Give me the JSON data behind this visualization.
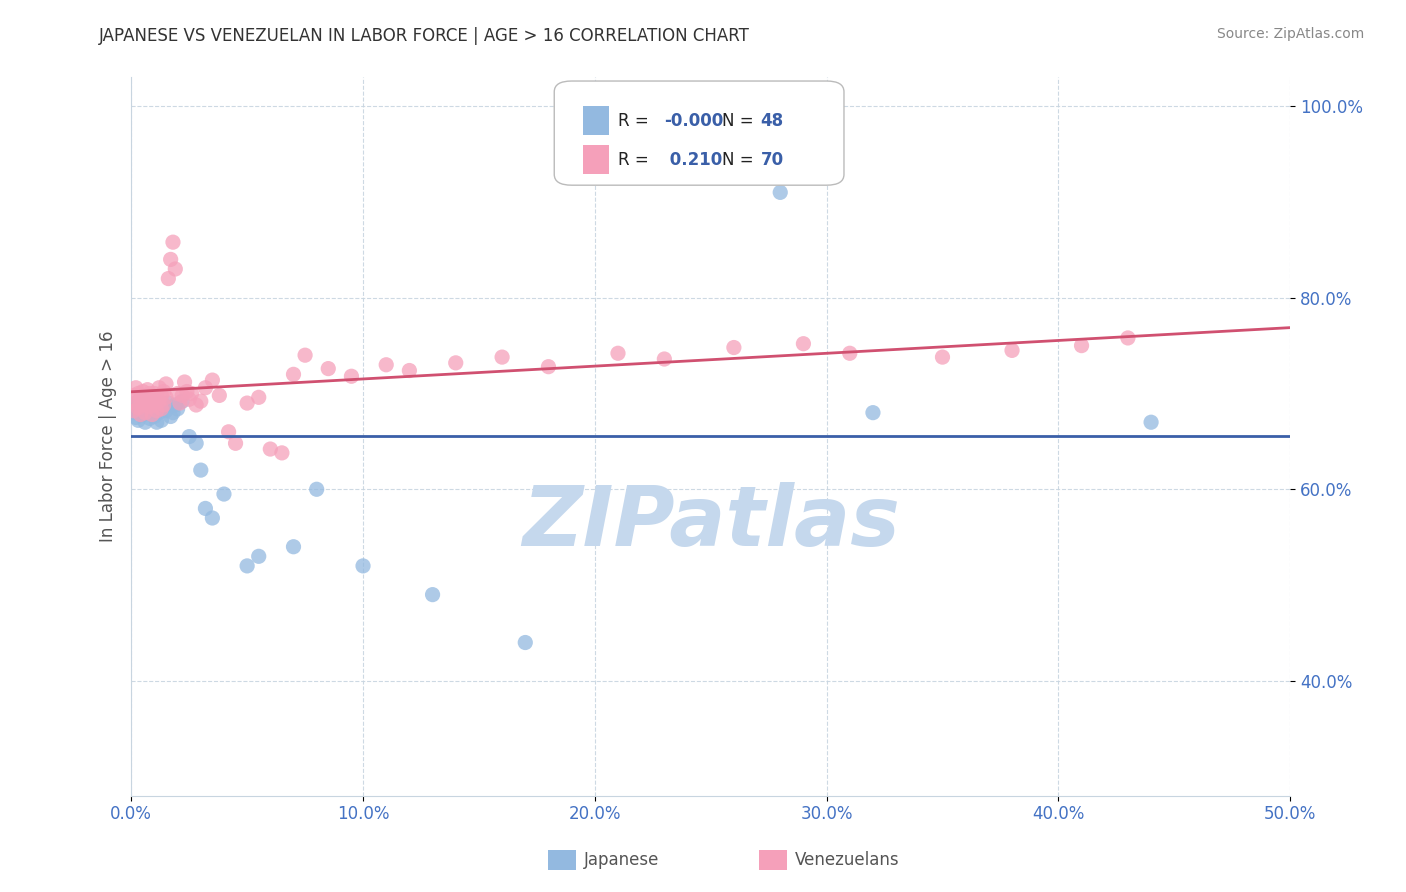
{
  "title": "JAPANESE VS VENEZUELAN IN LABOR FORCE | AGE > 16 CORRELATION CHART",
  "source": "Source: ZipAtlas.com",
  "ylabel": "In Labor Force | Age > 16",
  "xlim": [
    0.0,
    0.5
  ],
  "ylim": [
    0.28,
    1.03
  ],
  "xticks": [
    0.0,
    0.1,
    0.2,
    0.3,
    0.4,
    0.5
  ],
  "xticklabels": [
    "0.0%",
    "10.0%",
    "20.0%",
    "30.0%",
    "40.0%",
    "50.0%"
  ],
  "yticks": [
    0.4,
    0.6,
    0.8,
    1.0
  ],
  "yticklabels": [
    "40.0%",
    "60.0%",
    "80.0%",
    "100.0%"
  ],
  "watermark": "ZIPatlas",
  "watermark_color": "#c5d8ed",
  "japanese_color": "#93b9e0",
  "venezuelan_color": "#f5a0ba",
  "japanese_line_color": "#3a5fa8",
  "venezuelan_line_color": "#d05070",
  "grid_color": "#c8d5e0",
  "background_color": "#ffffff",
  "japanese_points": [
    [
      0.001,
      0.685
    ],
    [
      0.001,
      0.68
    ],
    [
      0.002,
      0.69
    ],
    [
      0.002,
      0.675
    ],
    [
      0.003,
      0.688
    ],
    [
      0.003,
      0.672
    ],
    [
      0.004,
      0.682
    ],
    [
      0.004,
      0.695
    ],
    [
      0.005,
      0.678
    ],
    [
      0.005,
      0.692
    ],
    [
      0.006,
      0.685
    ],
    [
      0.006,
      0.67
    ],
    [
      0.007,
      0.69
    ],
    [
      0.007,
      0.68
    ],
    [
      0.008,
      0.686
    ],
    [
      0.008,
      0.674
    ],
    [
      0.009,
      0.68
    ],
    [
      0.009,
      0.688
    ],
    [
      0.01,
      0.676
    ],
    [
      0.01,
      0.692
    ],
    [
      0.011,
      0.684
    ],
    [
      0.011,
      0.67
    ],
    [
      0.012,
      0.69
    ],
    [
      0.012,
      0.68
    ],
    [
      0.013,
      0.686
    ],
    [
      0.013,
      0.672
    ],
    [
      0.014,
      0.688
    ],
    [
      0.015,
      0.682
    ],
    [
      0.016,
      0.69
    ],
    [
      0.017,
      0.676
    ],
    [
      0.018,
      0.68
    ],
    [
      0.019,
      0.688
    ],
    [
      0.02,
      0.684
    ],
    [
      0.022,
      0.692
    ],
    [
      0.025,
      0.655
    ],
    [
      0.028,
      0.648
    ],
    [
      0.03,
      0.62
    ],
    [
      0.032,
      0.58
    ],
    [
      0.035,
      0.57
    ],
    [
      0.04,
      0.595
    ],
    [
      0.05,
      0.52
    ],
    [
      0.055,
      0.53
    ],
    [
      0.07,
      0.54
    ],
    [
      0.08,
      0.6
    ],
    [
      0.1,
      0.52
    ],
    [
      0.13,
      0.49
    ],
    [
      0.17,
      0.44
    ],
    [
      0.28,
      0.91
    ],
    [
      0.32,
      0.68
    ],
    [
      0.44,
      0.67
    ]
  ],
  "venezuelan_points": [
    [
      0.001,
      0.698
    ],
    [
      0.001,
      0.682
    ],
    [
      0.002,
      0.706
    ],
    [
      0.002,
      0.69
    ],
    [
      0.003,
      0.7
    ],
    [
      0.003,
      0.685
    ],
    [
      0.004,
      0.694
    ],
    [
      0.004,
      0.678
    ],
    [
      0.005,
      0.702
    ],
    [
      0.005,
      0.688
    ],
    [
      0.006,
      0.696
    ],
    [
      0.006,
      0.68
    ],
    [
      0.007,
      0.704
    ],
    [
      0.007,
      0.69
    ],
    [
      0.008,
      0.7
    ],
    [
      0.008,
      0.686
    ],
    [
      0.009,
      0.694
    ],
    [
      0.009,
      0.678
    ],
    [
      0.01,
      0.7
    ],
    [
      0.01,
      0.688
    ],
    [
      0.011,
      0.696
    ],
    [
      0.011,
      0.682
    ],
    [
      0.012,
      0.706
    ],
    [
      0.012,
      0.692
    ],
    [
      0.013,
      0.698
    ],
    [
      0.013,
      0.684
    ],
    [
      0.014,
      0.702
    ],
    [
      0.014,
      0.688
    ],
    [
      0.015,
      0.696
    ],
    [
      0.015,
      0.71
    ],
    [
      0.016,
      0.82
    ],
    [
      0.017,
      0.84
    ],
    [
      0.018,
      0.858
    ],
    [
      0.019,
      0.83
    ],
    [
      0.02,
      0.7
    ],
    [
      0.021,
      0.69
    ],
    [
      0.022,
      0.698
    ],
    [
      0.023,
      0.712
    ],
    [
      0.024,
      0.702
    ],
    [
      0.025,
      0.694
    ],
    [
      0.026,
      0.7
    ],
    [
      0.028,
      0.688
    ],
    [
      0.03,
      0.692
    ],
    [
      0.032,
      0.706
    ],
    [
      0.035,
      0.714
    ],
    [
      0.038,
      0.698
    ],
    [
      0.042,
      0.66
    ],
    [
      0.045,
      0.648
    ],
    [
      0.05,
      0.69
    ],
    [
      0.055,
      0.696
    ],
    [
      0.06,
      0.642
    ],
    [
      0.065,
      0.638
    ],
    [
      0.07,
      0.72
    ],
    [
      0.075,
      0.74
    ],
    [
      0.085,
      0.726
    ],
    [
      0.095,
      0.718
    ],
    [
      0.11,
      0.73
    ],
    [
      0.12,
      0.724
    ],
    [
      0.14,
      0.732
    ],
    [
      0.16,
      0.738
    ],
    [
      0.18,
      0.728
    ],
    [
      0.21,
      0.742
    ],
    [
      0.23,
      0.736
    ],
    [
      0.26,
      0.748
    ],
    [
      0.29,
      0.752
    ],
    [
      0.31,
      0.742
    ],
    [
      0.35,
      0.738
    ],
    [
      0.38,
      0.745
    ],
    [
      0.41,
      0.75
    ],
    [
      0.43,
      0.758
    ]
  ]
}
